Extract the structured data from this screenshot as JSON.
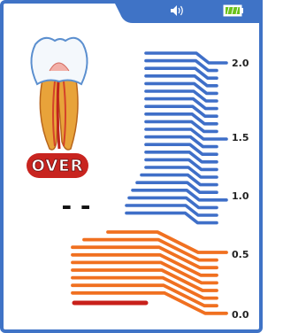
{
  "status": "OVER",
  "reading": "- -",
  "scale": {
    "labels": [
      "2.0",
      "1.5",
      "1.0",
      "0.5",
      "0.0"
    ]
  }
}
